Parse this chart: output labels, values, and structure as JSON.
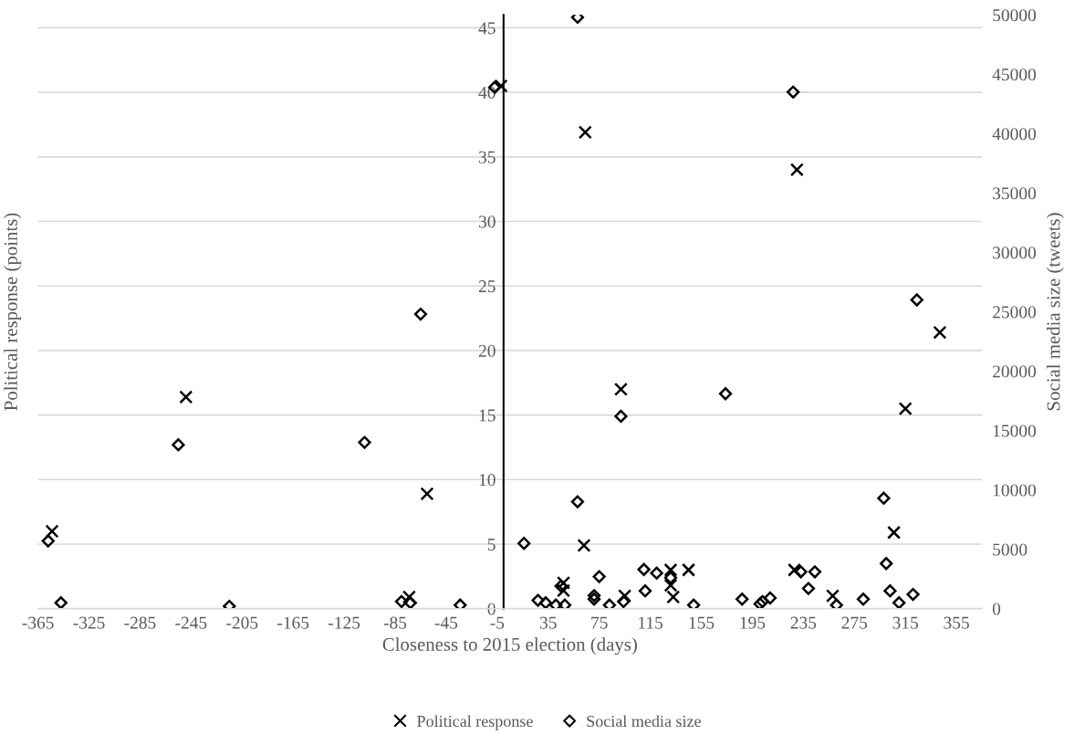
{
  "chart_data": {
    "type": "scatter",
    "xlabel": "Closeness to 2015 election (days)",
    "ylabel": "Political response (points)",
    "y2label": "Social media size (tweets)",
    "xlim": [
      -365,
      375
    ],
    "xticks": [
      -365,
      -325,
      -285,
      -245,
      -205,
      -165,
      -125,
      -85,
      -45,
      -5,
      35,
      75,
      115,
      155,
      195,
      235,
      275,
      315,
      355
    ],
    "ylim": [
      0,
      46
    ],
    "yticks": [
      0,
      5,
      10,
      15,
      20,
      25,
      30,
      35,
      40,
      45
    ],
    "y2lim": [
      0,
      50000
    ],
    "y2ticks": [
      0,
      5000,
      10000,
      15000,
      20000,
      25000,
      30000,
      35000,
      40000,
      45000,
      50000
    ],
    "grid": "y",
    "legend": "bottom",
    "series": [
      {
        "name": "Political response",
        "color": "#000000",
        "marker": "cross",
        "x": [
          -354,
          -249,
          -60,
          -74,
          -2,
          64,
          92,
          63,
          47,
          47,
          95,
          131,
          131,
          133,
          145,
          228,
          230,
          258,
          306,
          315,
          342
        ],
        "values": [
          6,
          16.4,
          8.9,
          0.9,
          40.5,
          36.9,
          17,
          4.9,
          2,
          1.4,
          1,
          3,
          1.8,
          0.9,
          3,
          3,
          34,
          1,
          5.9,
          15.5,
          21.4
        ]
      },
      {
        "name": "Social media size",
        "color": "#000000",
        "marker": "diamond",
        "axis": "y2",
        "x": [
          -357,
          -347,
          -255,
          -215,
          -109,
          -65,
          -80,
          -73,
          -34,
          -7,
          58,
          92,
          174,
          58,
          16,
          27,
          33,
          41,
          48,
          45,
          75,
          71,
          71,
          83,
          94,
          110,
          111,
          120,
          131,
          149,
          187,
          201,
          203,
          209,
          233,
          244,
          239,
          227,
          261,
          282,
          298,
          300,
          303,
          310,
          321,
          324
        ],
        "values": [
          5700,
          500,
          13800,
          200,
          14000,
          24800,
          600,
          500,
          300,
          43900,
          49800,
          16200,
          18100,
          9000,
          5500,
          700,
          500,
          300,
          300,
          1900,
          2700,
          1100,
          800,
          300,
          600,
          3300,
          1500,
          3000,
          2600,
          300,
          800,
          400,
          600,
          900,
          3100,
          3100,
          1700,
          43500,
          300,
          800,
          9300,
          3800,
          1500,
          500,
          1200,
          26000
        ]
      }
    ]
  }
}
